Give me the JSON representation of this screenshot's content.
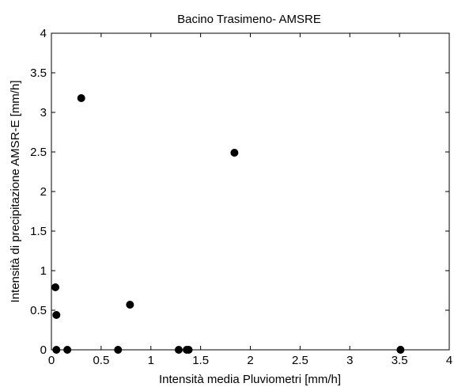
{
  "chart_data": {
    "type": "scatter",
    "title": "Bacino Trasimeno- AMSRE",
    "xlabel": "Intensità media Pluviometri [mm/h]",
    "ylabel": "Intensità di precipitazione AMSR-E [mm/h]",
    "xlim": [
      0,
      4
    ],
    "ylim": [
      0,
      4
    ],
    "xticks": [
      "0",
      "0.5",
      "1",
      "1.5",
      "2",
      "2.5",
      "3",
      "3.5",
      "4"
    ],
    "yticks": [
      "0",
      "0.5",
      "1",
      "1.5",
      "2",
      "2.5",
      "3",
      "3.5",
      "4"
    ],
    "grid": false,
    "marker_color": "#000000",
    "points": [
      {
        "x": 0.04,
        "y": 0.79
      },
      {
        "x": 0.05,
        "y": 0.44
      },
      {
        "x": 0.05,
        "y": 0.0
      },
      {
        "x": 0.16,
        "y": 0.0
      },
      {
        "x": 0.3,
        "y": 3.18
      },
      {
        "x": 0.67,
        "y": 0.0
      },
      {
        "x": 0.79,
        "y": 0.57
      },
      {
        "x": 1.28,
        "y": 0.0
      },
      {
        "x": 1.36,
        "y": 0.0
      },
      {
        "x": 1.38,
        "y": 0.0
      },
      {
        "x": 1.84,
        "y": 2.49
      },
      {
        "x": 3.51,
        "y": 0.0
      }
    ]
  }
}
